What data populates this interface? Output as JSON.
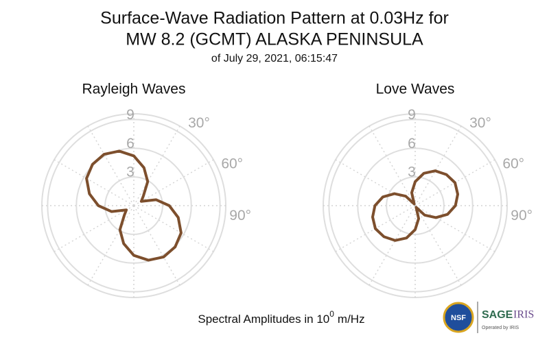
{
  "title": [
    "Surface-Wave Radiation Pattern at 0.03Hz for",
    "MW 8.2 (GCMT) ALASKA PENINSULA"
  ],
  "subtitle": "of July 29, 2021, 06:15:47",
  "footer": {
    "text": "Spectral Amplitudes in 10",
    "exponent": "0",
    "unit": "m/Hz"
  },
  "logo": {
    "left": "NSF",
    "brand": "SAGE",
    "brand2": "IRIS",
    "note": "Operated by IRIS"
  },
  "chart_data": [
    {
      "type": "polar",
      "title": "Rayleigh Waves",
      "color": "#7d4f2d",
      "theta": [
        0,
        15,
        30,
        45,
        60,
        75,
        90,
        105,
        120,
        135,
        150,
        165,
        180,
        195,
        210,
        225,
        240,
        255,
        270,
        285,
        300,
        315,
        330,
        345
      ],
      "r": [
        5.2,
        4.1,
        2.9,
        1.4,
        0.9,
        2.4,
        3.7,
        4.8,
        5.7,
        6.1,
        6.2,
        5.9,
        5.2,
        4.1,
        2.9,
        1.4,
        0.9,
        2.4,
        3.7,
        4.8,
        5.7,
        6.1,
        6.2,
        5.9
      ],
      "rlim": [
        0,
        9.6
      ],
      "rticks": [
        3,
        6,
        9
      ],
      "thetagrid": [
        0,
        30,
        60,
        90,
        120,
        150,
        180,
        210,
        240,
        270,
        300,
        330
      ],
      "thetaticks": [
        {
          "value": 30,
          "label": "30°"
        },
        {
          "value": 60,
          "label": "60°"
        },
        {
          "value": 90,
          "label": "90°"
        }
      ]
    },
    {
      "type": "polar",
      "title": "Love Waves",
      "color": "#7d4f2d",
      "theta": [
        0,
        15,
        30,
        45,
        60,
        75,
        90,
        105,
        120,
        135,
        150,
        165,
        180,
        195,
        210,
        225,
        240,
        255,
        270,
        285,
        300,
        315,
        330,
        345
      ],
      "r": [
        2.5,
        3.5,
        4.2,
        4.6,
        4.8,
        4.6,
        4.2,
        3.5,
        2.5,
        1.4,
        0.2,
        1.4,
        2.5,
        3.5,
        4.2,
        4.6,
        4.8,
        4.6,
        4.2,
        3.5,
        2.5,
        1.4,
        0.2,
        1.4
      ],
      "rlim": [
        0,
        9.6
      ],
      "rticks": [
        3,
        6,
        9
      ],
      "thetagrid": [
        0,
        30,
        60,
        90,
        120,
        150,
        180,
        210,
        240,
        270,
        300,
        330
      ],
      "thetaticks": [
        {
          "value": 30,
          "label": "30°"
        },
        {
          "value": 60,
          "label": "60°"
        },
        {
          "value": 90,
          "label": "90°"
        }
      ]
    }
  ]
}
